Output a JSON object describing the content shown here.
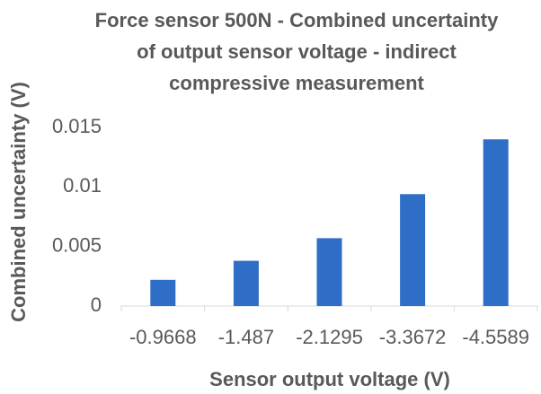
{
  "chart_data": {
    "type": "bar",
    "title": "Force sensor 500N - Combined uncertainty of output sensor voltage - indirect compressive measurement",
    "x_label": "Sensor output voltage (V)",
    "y_label": "Combined uncertainty (V)",
    "categories": [
      "-0.9668",
      "-1.487",
      "-2.1295",
      "-3.3672",
      "-4.5589"
    ],
    "values": [
      0.0022,
      0.0038,
      0.0057,
      0.0094,
      0.014
    ],
    "color": "#2f6ec6",
    "ylim": [
      0,
      0.015
    ],
    "yticks": [
      0,
      0.005,
      0.01,
      0.015
    ],
    "grid": false
  }
}
